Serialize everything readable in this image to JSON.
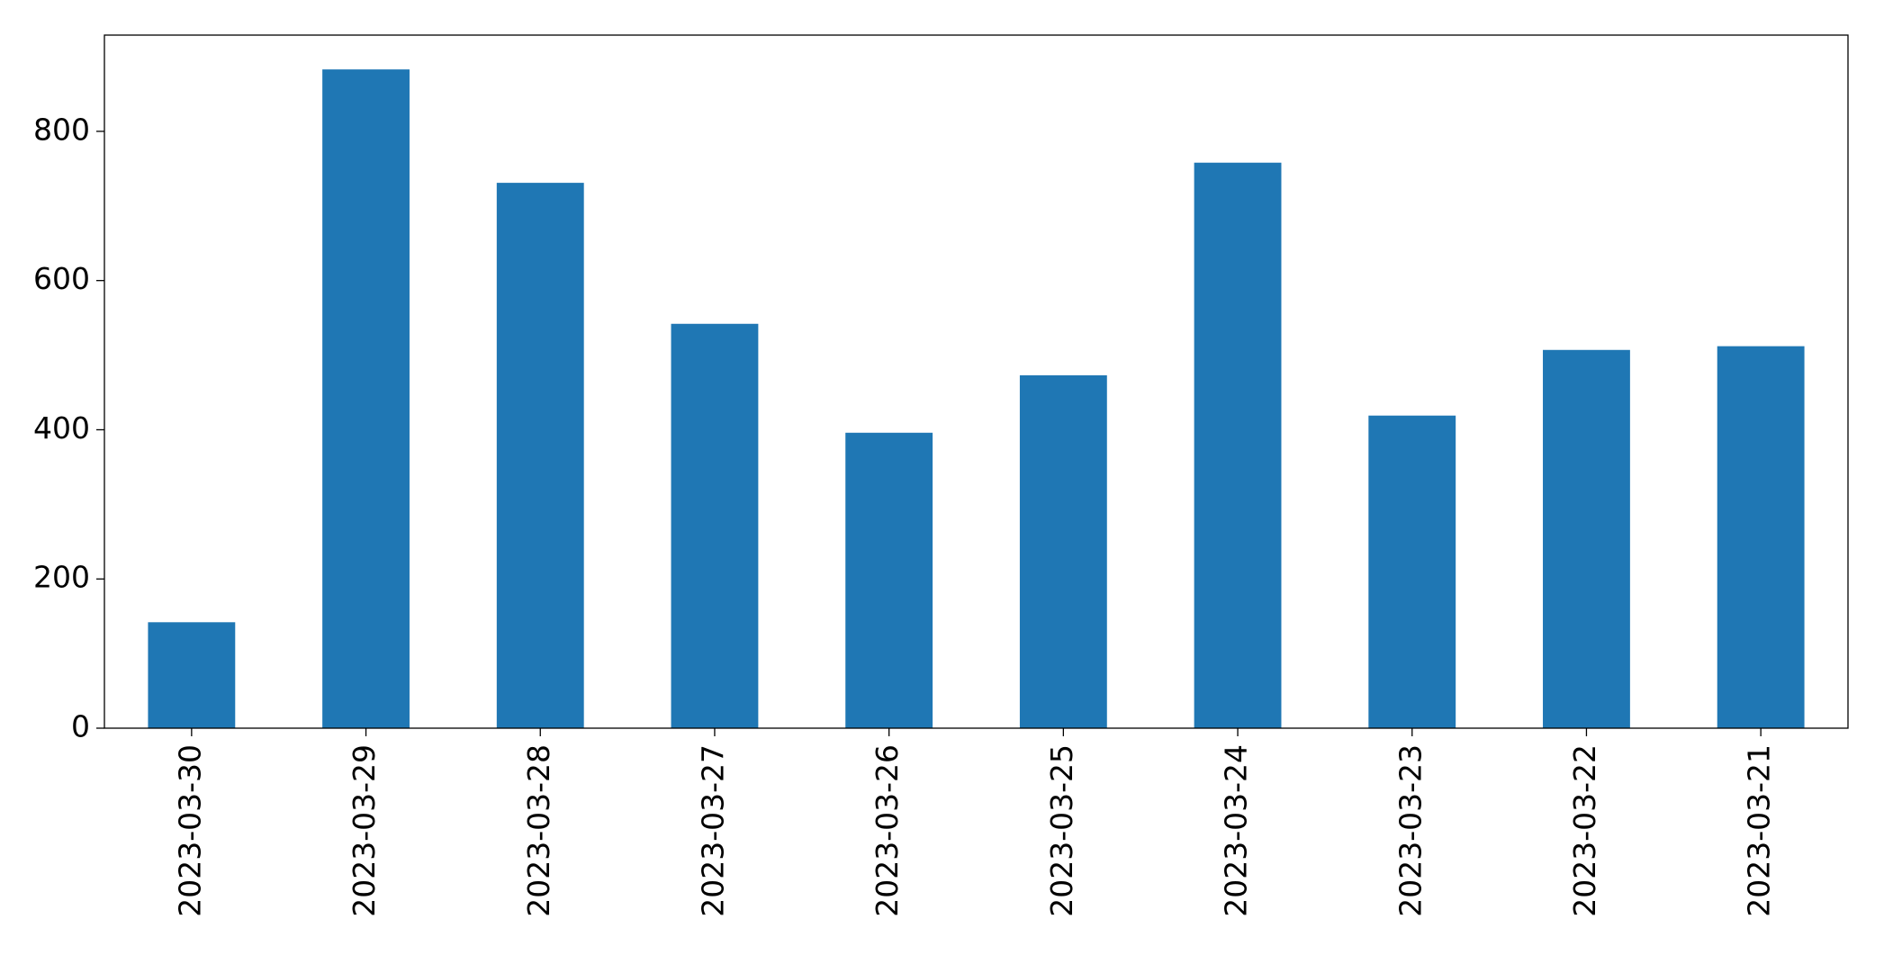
{
  "chart_data": {
    "type": "bar",
    "categories": [
      "2023-03-30",
      "2023-03-29",
      "2023-03-28",
      "2023-03-27",
      "2023-03-26",
      "2023-03-25",
      "2023-03-24",
      "2023-03-23",
      "2023-03-22",
      "2023-03-21"
    ],
    "values": [
      142,
      883,
      731,
      542,
      396,
      473,
      758,
      419,
      507,
      512
    ],
    "color": "#1f77b4",
    "ylim": [
      0,
      929
    ],
    "yticks": [
      0,
      200,
      400,
      600,
      800
    ],
    "grid": false
  }
}
